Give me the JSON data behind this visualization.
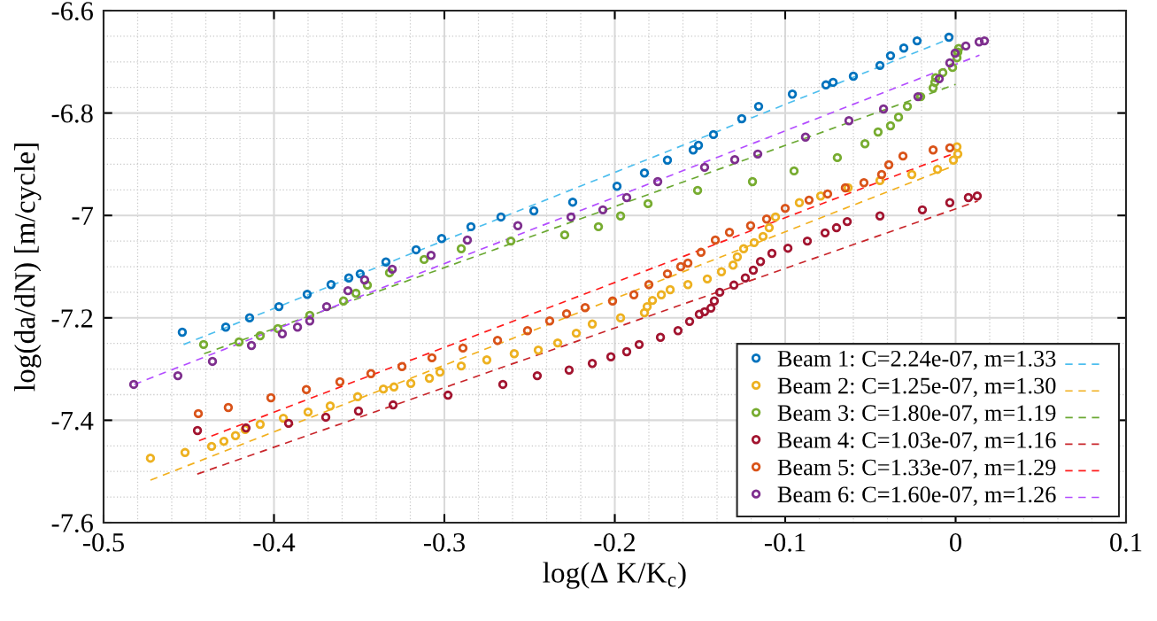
{
  "chart_data": {
    "type": "scatter",
    "xlabel": "log(Δ K/K$_{c}$)",
    "ylabel": "log(da/dN) [m/cycle]",
    "xlim": [
      -0.5,
      0.1
    ],
    "xticks": [
      -0.5,
      -0.4,
      -0.3,
      -0.2,
      -0.1,
      0,
      0.1
    ],
    "ylim": [
      -7.6,
      -6.6
    ],
    "yticks": [
      -7.6,
      -7.4,
      -7.2,
      {
        "value": -7,
        "label": "-7"
      },
      -6.8,
      -6.6
    ],
    "grid": true,
    "legend": "bottom right",
    "marker": "circle",
    "line_style": "dashed",
    "series": [
      {
        "name": "Beam 1: C=2.24e-07, m=1.33",
        "color": "#0072bd",
        "x": [
          -0.4538,
          -0.4283,
          -0.4143,
          -0.3971,
          -0.3805,
          -0.3665,
          -0.3561,
          -0.3494,
          -0.3343,
          -0.3166,
          -0.3016,
          -0.2844,
          -0.2668,
          -0.2475,
          -0.2247,
          -0.1987,
          -0.1826,
          -0.1691,
          -0.154,
          -0.1509,
          -0.1421,
          -0.1255,
          -0.1156,
          -0.0958,
          -0.0761,
          -0.0719,
          -0.06,
          -0.0444,
          -0.0382,
          -0.0304,
          -0.0226,
          -0.0039
        ],
        "values": [
          -7.228,
          -7.218,
          -7.2,
          -7.178,
          -7.154,
          -7.135,
          -7.122,
          -7.114,
          -7.091,
          -7.067,
          -7.045,
          -7.022,
          -7.003,
          -6.991,
          -6.974,
          -6.943,
          -6.917,
          -6.892,
          -6.872,
          -6.863,
          -6.842,
          -6.811,
          -6.787,
          -6.763,
          -6.745,
          -6.74,
          -6.728,
          -6.707,
          -6.688,
          -6.673,
          -6.659,
          -6.652
        ]
      },
      {
        "type": "line",
        "marker": "none",
        "color": "#4dbeee",
        "x": [
          -0.453,
          -0.005
        ],
        "values": [
          -7.252,
          -6.657
        ]
      },
      {
        "name": "Beam 2: C=1.25e-07, m=1.30",
        "color": "#edb120",
        "x": [
          -0.4725,
          -0.4522,
          -0.4366,
          -0.4294,
          -0.4226,
          -0.4169,
          -0.4081,
          -0.3945,
          -0.38,
          -0.367,
          -0.3509,
          -0.3358,
          -0.3296,
          -0.3197,
          -0.3088,
          -0.3026,
          -0.2901,
          -0.2751,
          -0.259,
          -0.2449,
          -0.2335,
          -0.2226,
          -0.2132,
          -0.1966,
          -0.1826,
          -0.181,
          -0.1779,
          -0.1727,
          -0.1675,
          -0.1571,
          -0.1457,
          -0.1374,
          -0.1306,
          -0.1281,
          -0.1244,
          -0.1182,
          -0.113,
          -0.1094,
          -0.1057,
          -0.0917,
          -0.0792,
          -0.0631,
          -0.0444,
          -0.0257,
          -0.0106,
          -0.0013,
          0.0013,
          0.0008
        ],
        "values": [
          -7.474,
          -7.463,
          -7.451,
          -7.441,
          -7.43,
          -7.418,
          -7.408,
          -7.396,
          -7.384,
          -7.372,
          -7.354,
          -7.339,
          -7.335,
          -7.328,
          -7.318,
          -7.306,
          -7.294,
          -7.282,
          -7.27,
          -7.263,
          -7.249,
          -7.23,
          -7.212,
          -7.2,
          -7.19,
          -7.178,
          -7.166,
          -7.155,
          -7.145,
          -7.135,
          -7.124,
          -7.11,
          -7.097,
          -7.081,
          -7.065,
          -7.053,
          -7.041,
          -7.024,
          -7.003,
          -6.975,
          -6.962,
          -6.946,
          -6.932,
          -6.92,
          -6.91,
          -6.892,
          -6.88,
          -6.866
        ]
      },
      {
        "type": "line",
        "marker": "none",
        "color": "#f2b01e",
        "x": [
          -0.4725,
          -0.001
        ],
        "values": [
          -7.517,
          -6.903
        ]
      },
      {
        "name": "Beam 3: C=1.80e-07, m=1.19",
        "color": "#77ac30",
        "x": [
          -0.4413,
          -0.4205,
          -0.4081,
          -0.3977,
          -0.379,
          -0.3592,
          -0.3519,
          -0.3452,
          -0.3322,
          -0.3119,
          -0.2901,
          -0.261,
          -0.2294,
          -0.2096,
          -0.1966,
          -0.1805,
          -0.1514,
          -0.1192,
          -0.0948,
          -0.0694,
          -0.0532,
          -0.0455,
          -0.0382,
          -0.0335,
          -0.0283,
          -0.0205,
          -0.0132,
          -0.0122,
          -0.0117,
          -0.0075,
          -0.0018,
          0.0008,
          0.0013,
          0.0018
        ],
        "values": [
          -7.252,
          -7.247,
          -7.235,
          -7.221,
          -7.195,
          -7.167,
          -7.152,
          -7.136,
          -7.112,
          -7.086,
          -7.065,
          -7.05,
          -7.038,
          -7.022,
          -7.001,
          -6.977,
          -6.951,
          -6.934,
          -6.913,
          -6.887,
          -6.86,
          -6.837,
          -6.825,
          -6.808,
          -6.787,
          -6.768,
          -6.751,
          -6.74,
          -6.731,
          -6.721,
          -6.711,
          -6.692,
          -6.681,
          -6.674
        ]
      },
      {
        "type": "line",
        "marker": "none",
        "color": "#6aa832",
        "x": [
          -0.441,
          0.0
        ],
        "values": [
          -7.27,
          -6.744
        ]
      },
      {
        "name": "Beam 4: C=1.03e-07, m=1.16",
        "color": "#a2142f",
        "x": [
          -0.4449,
          -0.4164,
          -0.3914,
          -0.3696,
          -0.3504,
          -0.3301,
          -0.2979,
          -0.2657,
          -0.2455,
          -0.2268,
          -0.2132,
          -0.2023,
          -0.193,
          -0.1857,
          -0.1732,
          -0.1629,
          -0.1561,
          -0.1504,
          -0.1473,
          -0.1436,
          -0.1416,
          -0.1384,
          -0.1301,
          -0.1234,
          -0.1187,
          -0.1145,
          -0.1078,
          -0.0984,
          -0.087,
          -0.0766,
          -0.0699,
          -0.0636,
          -0.0444,
          -0.0195,
          -0.0034,
          0.0075,
          0.0127
        ],
        "values": [
          -7.42,
          -7.415,
          -7.406,
          -7.394,
          -7.382,
          -7.37,
          -7.351,
          -7.33,
          -7.313,
          -7.302,
          -7.289,
          -7.276,
          -7.266,
          -7.252,
          -7.238,
          -7.225,
          -7.207,
          -7.193,
          -7.188,
          -7.181,
          -7.167,
          -7.15,
          -7.136,
          -7.122,
          -7.107,
          -7.09,
          -7.074,
          -7.064,
          -7.05,
          -7.034,
          -7.024,
          -7.012,
          -7.001,
          -6.989,
          -6.975,
          -6.965,
          -6.962
        ]
      },
      {
        "type": "line",
        "marker": "none",
        "color": "#c8252a",
        "x": [
          -0.445,
          0.013
        ],
        "values": [
          -7.505,
          -6.972
        ]
      },
      {
        "name": "Beam 5: C=1.33e-07, m=1.29",
        "color": "#d95319",
        "x": [
          -0.4444,
          -0.4268,
          -0.4018,
          -0.381,
          -0.3613,
          -0.3431,
          -0.3249,
          -0.3073,
          -0.2891,
          -0.2688,
          -0.2512,
          -0.2382,
          -0.2283,
          -0.2174,
          -0.2013,
          -0.1888,
          -0.18,
          -0.1691,
          -0.1613,
          -0.1571,
          -0.1494,
          -0.141,
          -0.1327,
          -0.1203,
          -0.1109,
          -0.1,
          -0.086,
          -0.0751,
          -0.0647,
          -0.0538,
          -0.0434,
          -0.0392,
          -0.0309,
          -0.0132,
          -0.0034
        ],
        "values": [
          -7.387,
          -7.375,
          -7.356,
          -7.34,
          -7.325,
          -7.309,
          -7.295,
          -7.278,
          -7.259,
          -7.244,
          -7.225,
          -7.206,
          -7.192,
          -7.18,
          -7.167,
          -7.155,
          -7.135,
          -7.114,
          -7.1,
          -7.093,
          -7.072,
          -7.048,
          -7.033,
          -7.02,
          -7.007,
          -6.986,
          -6.97,
          -6.958,
          -6.946,
          -6.936,
          -6.92,
          -6.901,
          -6.884,
          -6.872,
          -6.868
        ]
      },
      {
        "type": "line",
        "marker": "none",
        "color": "#ff1a1a",
        "x": [
          -0.444,
          -0.001
        ],
        "values": [
          -7.44,
          -6.879
        ]
      },
      {
        "name": "Beam 6: C=1.60e-07, m=1.26",
        "color": "#7e2f8e",
        "x": [
          -0.4823,
          -0.4564,
          -0.4361,
          -0.4132,
          -0.3951,
          -0.3862,
          -0.379,
          -0.3691,
          -0.3566,
          -0.3468,
          -0.3306,
          -0.3078,
          -0.2865,
          -0.2569,
          -0.2257,
          -0.207,
          -0.193,
          -0.1748,
          -0.1473,
          -0.1296,
          -0.1161,
          -0.0881,
          -0.0626,
          -0.0423,
          -0.0221,
          -0.0096,
          -0.0034,
          -0.0003,
          0.006,
          0.0138,
          0.0169
        ],
        "values": [
          -7.33,
          -7.313,
          -7.285,
          -7.254,
          -7.231,
          -7.218,
          -7.206,
          -7.178,
          -7.147,
          -7.126,
          -7.105,
          -7.078,
          -7.048,
          -7.02,
          -7.003,
          -6.989,
          -6.965,
          -6.934,
          -6.906,
          -6.891,
          -6.88,
          -6.847,
          -6.815,
          -6.792,
          -6.768,
          -6.733,
          -6.702,
          -6.683,
          -6.669,
          -6.661,
          -6.659
        ]
      },
      {
        "type": "line",
        "marker": "none",
        "color": "#b34dff",
        "x": [
          -0.482,
          0.014
        ],
        "values": [
          -7.33,
          -6.687
        ]
      }
    ]
  }
}
